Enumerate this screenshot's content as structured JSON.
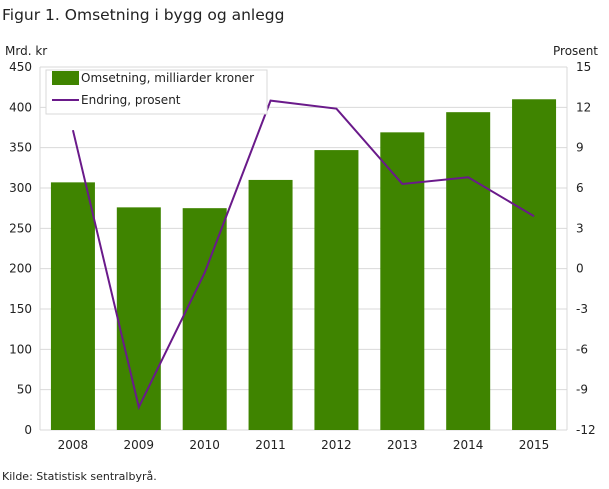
{
  "chart_data": {
    "type": "bar",
    "title": "Figur 1. Omsetning i bygg og anlegg",
    "source": "Kilde: Statistisk sentralbyrå.",
    "categories": [
      "2008",
      "2009",
      "2010",
      "2011",
      "2012",
      "2013",
      "2014",
      "2015"
    ],
    "y_left": {
      "label": "Mrd. kr",
      "range": [
        0,
        450
      ],
      "ticks": [
        0,
        50,
        100,
        150,
        200,
        250,
        300,
        350,
        400,
        450
      ]
    },
    "y_right": {
      "label": "Prosent",
      "range": [
        -12,
        15
      ],
      "ticks": [
        -12,
        -9,
        -6,
        -3,
        0,
        3,
        6,
        9,
        12,
        15
      ]
    },
    "grid": true,
    "legend_position": "top-left",
    "series": [
      {
        "name": "Omsetning, milliarder kroner",
        "type": "bar",
        "axis": "left",
        "color": "#3f8400",
        "values": [
          307,
          276,
          275,
          310,
          347,
          369,
          394,
          410
        ]
      },
      {
        "name": "Endring, prosent",
        "type": "line",
        "axis": "right",
        "color": "#6a1a8a",
        "values": [
          10.3,
          -10.3,
          -0.3,
          12.5,
          11.9,
          6.3,
          6.8,
          3.9
        ]
      }
    ]
  }
}
